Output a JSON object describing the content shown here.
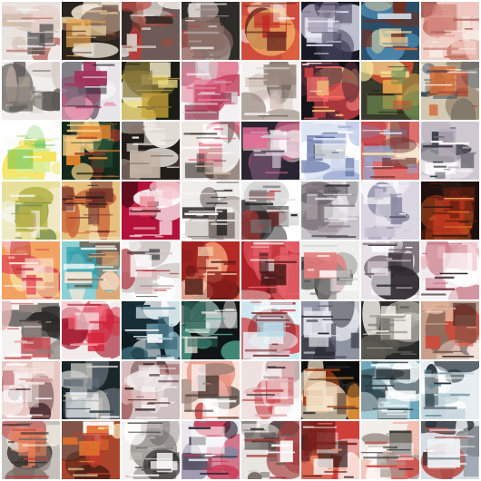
{
  "grid": {
    "rows": 8,
    "cols": 8,
    "tiles": [
      {
        "row": 0,
        "col": 0,
        "bg": "#e9e3df",
        "colors": [
          "#f4f1ee",
          "#e5cfc8",
          "#b86b66",
          "#cdb8a7",
          "#444444"
        ]
      },
      {
        "row": 0,
        "col": 1,
        "bg": "#2a241d",
        "colors": [
          "#f0d7a5",
          "#e9a34e",
          "#5b3a2c",
          "#c15d3e",
          "#f7efe3"
        ]
      },
      {
        "row": 0,
        "col": 2,
        "bg": "#6e5a56",
        "colors": [
          "#2b211f",
          "#c23938",
          "#f0eee8",
          "#9f4a3c",
          "#d6ccc3"
        ]
      },
      {
        "row": 0,
        "col": 3,
        "bg": "#2f2d2a",
        "colors": [
          "#8b6e68",
          "#e8e4e0",
          "#b5a39f",
          "#d5282d",
          "#e9d6cf"
        ]
      },
      {
        "row": 0,
        "col": 4,
        "bg": "#d04c3c",
        "colors": [
          "#f6f1ea",
          "#c12a25",
          "#f4bb6c",
          "#6b2a21",
          "#e76c42"
        ]
      },
      {
        "row": 0,
        "col": 5,
        "bg": "#191923",
        "colors": [
          "#d9dbeb",
          "#a9a2b6",
          "#7a6f87",
          "#403d55",
          "#f2f2f7"
        ]
      },
      {
        "row": 0,
        "col": 6,
        "bg": "#2a4f6a",
        "colors": [
          "#e16b2f",
          "#f4d89f",
          "#4f8db5",
          "#d3e1ec",
          "#732f1f"
        ]
      },
      {
        "row": 0,
        "col": 7,
        "bg": "#eec8c0",
        "colors": [
          "#f8e9e3",
          "#e6a59d",
          "#c46d63",
          "#f3d4c8",
          "#9f5550"
        ]
      },
      {
        "row": 1,
        "col": 0,
        "bg": "#f0edeb",
        "colors": [
          "#5b5855",
          "#d8cfc9",
          "#2d2b2a",
          "#b3a49a",
          "#878079"
        ]
      },
      {
        "row": 1,
        "col": 1,
        "bg": "#e7e5e8",
        "colors": [
          "#a4345b",
          "#2e2a35",
          "#f4f3f4",
          "#7c6c7c",
          "#e89bb1"
        ]
      },
      {
        "row": 1,
        "col": 2,
        "bg": "#1b1c14",
        "colors": [
          "#f0df86",
          "#c9a338",
          "#f8f3dd",
          "#1d2a1f",
          "#81733a"
        ]
      },
      {
        "row": 1,
        "col": 3,
        "bg": "#f3f0f1",
        "colors": [
          "#c23a5a",
          "#e37b94",
          "#ffffff",
          "#8d3047",
          "#d3c6cb"
        ]
      },
      {
        "row": 1,
        "col": 4,
        "bg": "#f5f1ee",
        "colors": [
          "#cfbcb2",
          "#9a8a80",
          "#ffffff",
          "#dad1cb",
          "#6c5e56"
        ]
      },
      {
        "row": 1,
        "col": 5,
        "bg": "#151218",
        "colors": [
          "#d84346",
          "#f0c07a",
          "#5a2c3b",
          "#ff6d6d",
          "#f9efe8"
        ]
      },
      {
        "row": 1,
        "col": 6,
        "bg": "#3a3b2c",
        "colors": [
          "#f8eaa0",
          "#cc4f34",
          "#6c8a50",
          "#e7a54c",
          "#2b2218"
        ]
      },
      {
        "row": 1,
        "col": 7,
        "bg": "#d3c8b2",
        "colors": [
          "#ad3b2a",
          "#f5f0e8",
          "#d46e3b",
          "#364758",
          "#8f7b63"
        ]
      },
      {
        "row": 2,
        "col": 0,
        "bg": "#fbfbf7",
        "colors": [
          "#67c043",
          "#f4e35a",
          "#a8de8a",
          "#d7ef9b",
          "#ffffff"
        ]
      },
      {
        "row": 2,
        "col": 1,
        "bg": "#14291c",
        "colors": [
          "#e8862e",
          "#a0352b",
          "#f5d38a",
          "#274d34",
          "#0d140f"
        ]
      },
      {
        "row": 2,
        "col": 2,
        "bg": "#221c1a",
        "colors": [
          "#e0d6cb",
          "#c4b4a8",
          "#5e4f49",
          "#f6f1eb",
          "#8b7164"
        ]
      },
      {
        "row": 2,
        "col": 3,
        "bg": "#efe7e2",
        "colors": [
          "#2b2622",
          "#c9b3a6",
          "#e45d7a",
          "#ffffff",
          "#7c6b62"
        ]
      },
      {
        "row": 2,
        "col": 4,
        "bg": "#2a2530",
        "colors": [
          "#efc8c4",
          "#e86d96",
          "#d6cdd8",
          "#604a61",
          "#ffffff"
        ]
      },
      {
        "row": 2,
        "col": 5,
        "bg": "#dde4f2",
        "colors": [
          "#4a5d95",
          "#ffffff",
          "#202333",
          "#98a7cf",
          "#c7d0ea"
        ]
      },
      {
        "row": 2,
        "col": 6,
        "bg": "#dd6f6d",
        "colors": [
          "#f5e7ab",
          "#b83036",
          "#8fb0d9",
          "#f9f0ec",
          "#6c2e33"
        ]
      },
      {
        "row": 2,
        "col": 7,
        "bg": "#cfc8d1",
        "colors": [
          "#ffffff",
          "#6d6b75",
          "#b8b0bd",
          "#2f3037",
          "#e9e5ec"
        ]
      },
      {
        "row": 3,
        "col": 0,
        "bg": "#e8df9b",
        "colors": [
          "#b6b447",
          "#f2ecd1",
          "#7b8f4a",
          "#f6f5ea",
          "#c2a36b"
        ]
      },
      {
        "row": 3,
        "col": 1,
        "bg": "#e6c07f",
        "colors": [
          "#6c2c28",
          "#c9673b",
          "#f4e3bf",
          "#2a1b17",
          "#efd8a1"
        ]
      },
      {
        "row": 3,
        "col": 2,
        "bg": "#b4123a",
        "colors": [
          "#ffffff",
          "#f3c6cc",
          "#e2314a",
          "#5a0d1c",
          "#ffe2e7"
        ]
      },
      {
        "row": 3,
        "col": 3,
        "bg": "#f0eeeb",
        "colors": [
          "#a4a09c",
          "#2e2b29",
          "#d8d4cf",
          "#7c706b",
          "#ffffff"
        ]
      },
      {
        "row": 3,
        "col": 4,
        "bg": "#ffffff",
        "colors": [
          "#242424",
          "#7d7d7d",
          "#e8e8e8",
          "#b03535",
          "#cfcfcf"
        ]
      },
      {
        "row": 3,
        "col": 5,
        "bg": "#c8c4cc",
        "colors": [
          "#302b2d",
          "#7e6e74",
          "#f4f3f4",
          "#575055",
          "#a3959b"
        ]
      },
      {
        "row": 3,
        "col": 6,
        "bg": "#dad6e2",
        "colors": [
          "#ffffff",
          "#8d8ba2",
          "#c6c2d2",
          "#55546b",
          "#f0eef5"
        ]
      },
      {
        "row": 3,
        "col": 7,
        "bg": "#1f120e",
        "colors": [
          "#e65a23",
          "#f7c064",
          "#6b1f12",
          "#c43a20",
          "#2b1c15"
        ]
      },
      {
        "row": 4,
        "col": 0,
        "bg": "#f2a261",
        "colors": [
          "#e54d5a",
          "#f8e3a3",
          "#f6c3c6",
          "#c4333d",
          "#fbecd7"
        ]
      },
      {
        "row": 4,
        "col": 1,
        "bg": "#8ed0d4",
        "colors": [
          "#ffffff",
          "#e1a572",
          "#35a0ac",
          "#f8e8d6",
          "#6b5a4c"
        ]
      },
      {
        "row": 4,
        "col": 2,
        "bg": "#f6f6f4",
        "colors": [
          "#b23a46",
          "#e3b0b3",
          "#4a4a47",
          "#cdc6c3",
          "#ffffff"
        ]
      },
      {
        "row": 4,
        "col": 3,
        "bg": "#b52a26",
        "colors": [
          "#f6d7b9",
          "#8c1e1a",
          "#f49b73",
          "#ffffff",
          "#4a1612"
        ]
      },
      {
        "row": 4,
        "col": 4,
        "bg": "#aa2226",
        "colors": [
          "#f6e2e1",
          "#e8656e",
          "#4a1a19",
          "#ffffff",
          "#d64a52"
        ]
      },
      {
        "row": 4,
        "col": 5,
        "bg": "#eeeeec",
        "colors": [
          "#2d2d2b",
          "#cfcfcd",
          "#898886",
          "#ffffff",
          "#e67c7c"
        ]
      },
      {
        "row": 4,
        "col": 6,
        "bg": "#e7e3e6",
        "colors": [
          "#2f2a2f",
          "#ae9aa5",
          "#ffffff",
          "#6c5f67",
          "#d8cbd3"
        ]
      },
      {
        "row": 4,
        "col": 7,
        "bg": "#f1eaed",
        "colors": [
          "#7a2f3b",
          "#e8b0ba",
          "#2f1b20",
          "#ffffff",
          "#c46a79"
        ]
      },
      {
        "row": 5,
        "col": 0,
        "bg": "#f4f1ef",
        "colors": [
          "#c5363d",
          "#2d2a28",
          "#e6b3b3",
          "#ffffff",
          "#8e7f7a"
        ]
      },
      {
        "row": 5,
        "col": 1,
        "bg": "#f2ebe9",
        "colors": [
          "#d8243c",
          "#ff6d7f",
          "#a41a30",
          "#ffffff",
          "#f8c0c7"
        ]
      },
      {
        "row": 5,
        "col": 2,
        "bg": "#0f1c22",
        "colors": [
          "#96c6d8",
          "#ffffff",
          "#3a6776",
          "#1d3a45",
          "#e0eef2"
        ]
      },
      {
        "row": 5,
        "col": 3,
        "bg": "#0f1615",
        "colors": [
          "#4fa48e",
          "#ece6e0",
          "#2a5e52",
          "#ffffff",
          "#a7cfc3"
        ]
      },
      {
        "row": 5,
        "col": 4,
        "bg": "#cde6f0",
        "colors": [
          "#ffffff",
          "#d8262a",
          "#a7d3e3",
          "#7d1515",
          "#eaf5fa"
        ]
      },
      {
        "row": 5,
        "col": 5,
        "bg": "#8e94a2",
        "colors": [
          "#2c2d36",
          "#e9eaf0",
          "#4a4c5a",
          "#b3b7c3",
          "#1a1b22"
        ]
      },
      {
        "row": 5,
        "col": 6,
        "bg": "#2a2b2a",
        "colors": [
          "#a5a69b",
          "#e5e3d9",
          "#5a5a53",
          "#f3f2ec",
          "#7f7e75"
        ]
      },
      {
        "row": 5,
        "col": 7,
        "bg": "#c6a08d",
        "colors": [
          "#312322",
          "#cf4a3a",
          "#f3e2da",
          "#7a5346",
          "#e8b89f"
        ]
      },
      {
        "row": 6,
        "col": 0,
        "bg": "#e8c7c2",
        "colors": [
          "#4a2d2f",
          "#f3e3e0",
          "#c67a7c",
          "#ffffff",
          "#8e5a5e"
        ]
      },
      {
        "row": 6,
        "col": 1,
        "bg": "#1b2629",
        "colors": [
          "#d2cfc8",
          "#66707a",
          "#a5a8a8",
          "#ffffff",
          "#3a4650"
        ]
      },
      {
        "row": 6,
        "col": 2,
        "bg": "#cfc1c1",
        "colors": [
          "#5a2a2a",
          "#f5efef",
          "#a05656",
          "#2e1a1a",
          "#e3b5b5"
        ]
      },
      {
        "row": 6,
        "col": 3,
        "bg": "#f7e3d9",
        "colors": [
          "#c2383a",
          "#4c3d38",
          "#ffffff",
          "#e88d7c",
          "#9d8077"
        ]
      },
      {
        "row": 6,
        "col": 4,
        "bg": "#efe1df",
        "colors": [
          "#222222",
          "#c84950",
          "#ffffff",
          "#9a8c89",
          "#e3b1b5"
        ]
      },
      {
        "row": 6,
        "col": 5,
        "bg": "#0d0d0d",
        "colors": [
          "#f09a3c",
          "#9b3b15",
          "#2f2f2f",
          "#f5e4c9",
          "#51301a"
        ]
      },
      {
        "row": 6,
        "col": 6,
        "bg": "#6fa8ba",
        "colors": [
          "#ffffff",
          "#2e3f45",
          "#b9d9e2",
          "#1a2428",
          "#e3f0f3"
        ]
      },
      {
        "row": 6,
        "col": 7,
        "bg": "#e7edf0",
        "colors": [
          "#1f2c33",
          "#ffffff",
          "#5e8a9a",
          "#3c4e56",
          "#c3d4db"
        ]
      },
      {
        "row": 7,
        "col": 0,
        "bg": "#c5c0bc",
        "colors": [
          "#c43a3a",
          "#fff6ea",
          "#2f2a28",
          "#7c6e67",
          "#e97f57"
        ]
      },
      {
        "row": 7,
        "col": 1,
        "bg": "#a8452b",
        "colors": [
          "#f5dfb0",
          "#e0712f",
          "#4a1f15",
          "#ffffff",
          "#c43a2a"
        ]
      },
      {
        "row": 7,
        "col": 2,
        "bg": "#f4f2f0",
        "colors": [
          "#2c2a28",
          "#8d8884",
          "#ffffff",
          "#c4beb9",
          "#5a5653"
        ]
      },
      {
        "row": 7,
        "col": 3,
        "bg": "#e9e6ec",
        "colors": [
          "#c93a57",
          "#272431",
          "#ffffff",
          "#8c86a0",
          "#e6a0b0"
        ]
      },
      {
        "row": 7,
        "col": 4,
        "bg": "#e9e5e1",
        "colors": [
          "#2a2624",
          "#a43c3c",
          "#ffffff",
          "#6c605b",
          "#d3c9c2"
        ]
      },
      {
        "row": 7,
        "col": 5,
        "bg": "#cf3f3a",
        "colors": [
          "#f6efe7",
          "#7d1e1c",
          "#e98f6e",
          "#ffffff",
          "#2f1b1a"
        ]
      },
      {
        "row": 7,
        "col": 6,
        "bg": "#f1eeea",
        "colors": [
          "#d7433d",
          "#272524",
          "#ffffff",
          "#a19a93",
          "#f3b9a9"
        ]
      },
      {
        "row": 7,
        "col": 7,
        "bg": "#d6dde4",
        "colors": [
          "#2a2f35",
          "#ffffff",
          "#7a8792",
          "#b84a44",
          "#eff3f6"
        ]
      }
    ]
  }
}
